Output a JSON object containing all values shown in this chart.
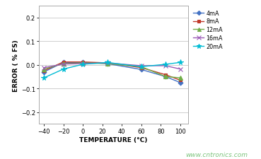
{
  "title": "",
  "xlabel": "TEMPERATURE (°C)",
  "ylabel": "ERROR ( % FS)",
  "watermark": "www.cntronics.com",
  "xlim": [
    -45,
    108
  ],
  "ylim": [
    -0.25,
    0.25
  ],
  "yticks": [
    -0.2,
    -0.1,
    0.0,
    0.1,
    0.2
  ],
  "xticks": [
    -40,
    -20,
    0,
    20,
    40,
    60,
    80,
    100
  ],
  "background_color": "#ffffff",
  "plot_bg_color": "#ffffff",
  "series": [
    {
      "label": "4mA",
      "color": "#4472c4",
      "marker": "D",
      "markersize": 3.5,
      "x": [
        -40,
        -20,
        0,
        25,
        60,
        85,
        100
      ],
      "y": [
        -0.03,
        0.01,
        0.01,
        0.005,
        -0.02,
        -0.05,
        -0.075
      ]
    },
    {
      "label": "8mA",
      "color": "#c0392b",
      "marker": "s",
      "markersize": 3.5,
      "x": [
        -40,
        -20,
        0,
        25,
        60,
        85,
        100
      ],
      "y": [
        -0.025,
        0.012,
        0.012,
        0.008,
        -0.012,
        -0.042,
        -0.065
      ]
    },
    {
      "label": "12mA",
      "color": "#70ad47",
      "marker": "^",
      "markersize": 4.0,
      "x": [
        -40,
        -20,
        0,
        25,
        60,
        85,
        100
      ],
      "y": [
        -0.018,
        0.005,
        0.008,
        0.005,
        -0.008,
        -0.05,
        -0.055
      ]
    },
    {
      "label": "16mA",
      "color": "#9b59b6",
      "marker": "x",
      "markersize": 4.5,
      "x": [
        -40,
        -20,
        0,
        25,
        60,
        85,
        100
      ],
      "y": [
        -0.012,
        0.003,
        0.005,
        0.008,
        -0.004,
        -0.004,
        -0.018
      ]
    },
    {
      "label": "20mA",
      "color": "#00bcd4",
      "marker": "*",
      "markersize": 5.5,
      "x": [
        -40,
        -20,
        0,
        25,
        60,
        85,
        100
      ],
      "y": [
        -0.055,
        -0.018,
        0.002,
        0.01,
        -0.008,
        0.002,
        0.01
      ]
    }
  ]
}
